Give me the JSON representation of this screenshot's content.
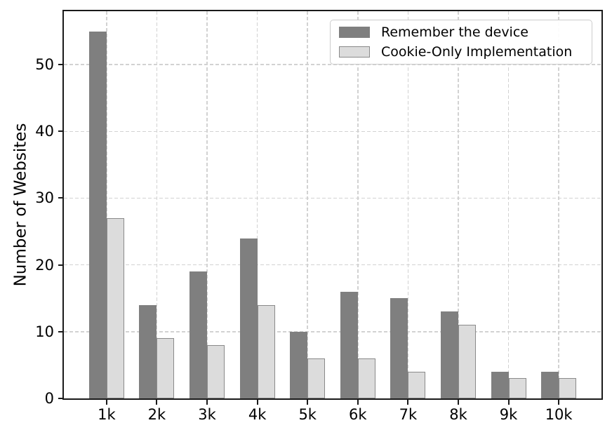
{
  "chart_data": {
    "type": "bar",
    "title": "",
    "xlabel": "",
    "ylabel": "Number of Websites",
    "categories": [
      "1k",
      "2k",
      "3k",
      "4k",
      "5k",
      "6k",
      "7k",
      "8k",
      "9k",
      "10k"
    ],
    "series": [
      {
        "name": "Remember the device",
        "values": [
          55,
          14,
          19,
          24,
          10,
          16,
          15,
          13,
          4,
          4
        ],
        "fill": "#7f7f7f",
        "edge": "#7f7f7f"
      },
      {
        "name": "Cookie-Only Implementation",
        "values": [
          27,
          9,
          8,
          14,
          6,
          6,
          4,
          11,
          3,
          3
        ],
        "fill": "#dcdcdc",
        "edge": "#8a8a8a"
      }
    ],
    "yticks": [
      0,
      10,
      20,
      30,
      40,
      50
    ],
    "ylim": [
      0,
      58
    ],
    "bar_width_frac": 0.35,
    "grid": "dashed",
    "grid_color": "#d2d2d2",
    "legend_position": "top-right",
    "spine_color": "#1a1a1a",
    "background_color": "#ffffff"
  }
}
